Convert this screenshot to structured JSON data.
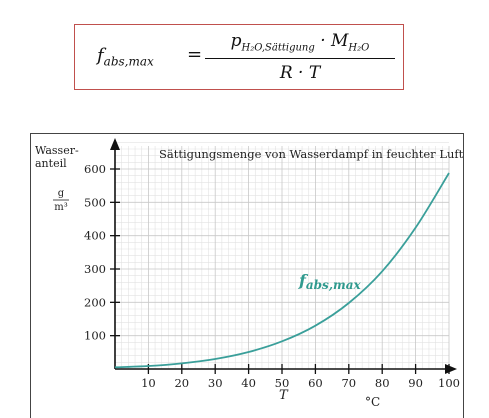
{
  "formula": {
    "lhs_main": "f",
    "lhs_sub": "abs,max",
    "equals": "=",
    "num_p": "p",
    "num_p_sub": "H₂O,Sättigung",
    "num_dot": "·",
    "num_m": "M",
    "num_m_sub": "H₂O",
    "denominator": "R · T"
  },
  "chart_data": {
    "type": "line",
    "title": "Sättigungsmenge von Wasserdampf in feuchter Luft",
    "ylabel_line1": "Wasser-",
    "ylabel_line2": "anteil",
    "yunit_num": "g",
    "yunit_den": "m³",
    "xlabel": "T",
    "xunit": "°C",
    "curve_label": "f",
    "curve_label_sub": "abs,max",
    "xlim": [
      0,
      100
    ],
    "ylim": [
      0,
      600
    ],
    "x_ticks": [
      10,
      20,
      30,
      40,
      50,
      60,
      70,
      80,
      90,
      100
    ],
    "y_ticks": [
      100,
      200,
      300,
      400,
      500,
      600
    ],
    "grid": true,
    "series": [
      {
        "name": "f_abs,max",
        "x": [
          0,
          10,
          20,
          30,
          40,
          50,
          60,
          70,
          80,
          90,
          100
        ],
        "values": [
          5,
          9,
          17,
          30,
          51,
          83,
          130,
          198,
          293,
          424,
          588
        ]
      }
    ],
    "colors": {
      "curve": "#3a9f9a",
      "label": "#2f9a8e",
      "grid_minor": "#e2e2e2",
      "grid_major": "#c8c8c8",
      "axis": "#111111"
    }
  }
}
